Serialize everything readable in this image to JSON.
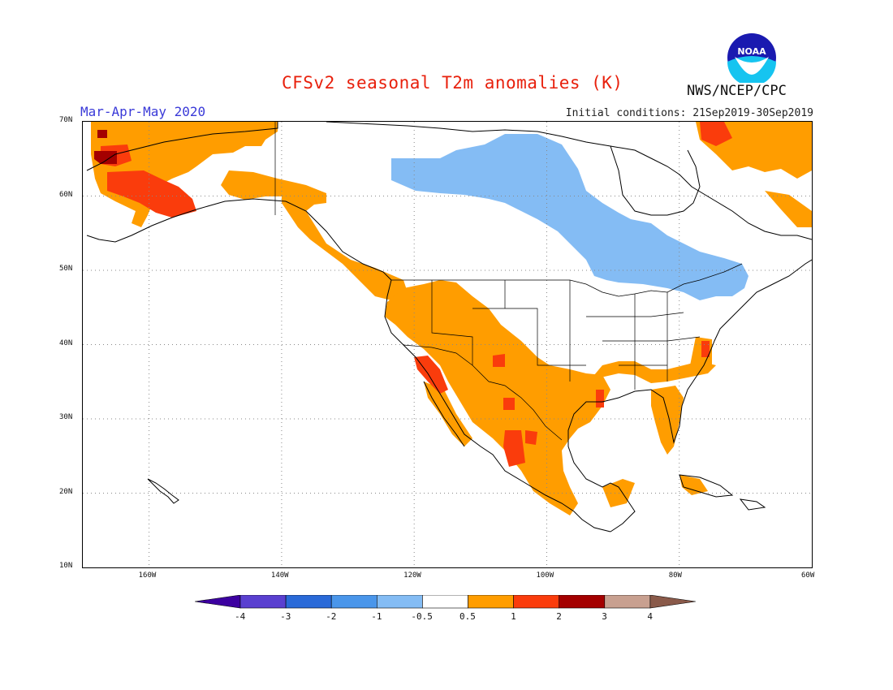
{
  "title": "CFSv2 seasonal T2m anomalies (K)",
  "season": "Mar-Apr-May 2020",
  "initial_conditions": "Initial conditions: 21Sep2019-30Sep2019",
  "agency": "NWS/NCEP/CPC",
  "logo": {
    "text": "NOAA",
    "icon": "noaa-logo"
  },
  "map": {
    "projection": "lat-lon",
    "lat_range": [
      10,
      70
    ],
    "lon_range": [
      -170,
      -60
    ],
    "lat_ticks": [
      {
        "value": 70,
        "label": "70N"
      },
      {
        "value": 60,
        "label": "60N"
      },
      {
        "value": 50,
        "label": "50N"
      },
      {
        "value": 40,
        "label": "40N"
      },
      {
        "value": 30,
        "label": "30N"
      },
      {
        "value": 20,
        "label": "20N"
      },
      {
        "value": 10,
        "label": "10N"
      }
    ],
    "lon_ticks": [
      {
        "value": -160,
        "label": "160W"
      },
      {
        "value": -140,
        "label": "140W"
      },
      {
        "value": -120,
        "label": "120W"
      },
      {
        "value": -100,
        "label": "100W"
      },
      {
        "value": -80,
        "label": "80W"
      },
      {
        "value": -60,
        "label": "60W"
      }
    ],
    "grid": "dotted"
  },
  "colorbar": {
    "labels": [
      "-4",
      "-3",
      "-2",
      "-1",
      "-0.5",
      "0.5",
      "1",
      "2",
      "3",
      "4"
    ],
    "colors": [
      "#3c00a0",
      "#5a40d0",
      "#2a6ad8",
      "#4a96ea",
      "#84bcf4",
      "#ffffff",
      "#ff9d00",
      "#fa3c0c",
      "#a40000",
      "#c8a090",
      "#8a5a4a"
    ]
  },
  "anomaly_regions": [
    {
      "name": "Alaska west",
      "level": "1-2 K",
      "color": "#fa3c0c"
    },
    {
      "name": "Alaska",
      "level": "0.5-1 K",
      "color": "#ff9d00"
    },
    {
      "name": "Canada interior",
      "level": "-1 to -0.5 K",
      "color": "#84bcf4"
    },
    {
      "name": "US Southwest & Mexico",
      "level": "0.5-1 K",
      "color": "#ff9d00"
    },
    {
      "name": "US Southeast",
      "level": "0.5-1 K",
      "color": "#ff9d00"
    },
    {
      "name": "Baffin / Labrador",
      "level": "0.5-1 K",
      "color": "#ff9d00"
    }
  ]
}
